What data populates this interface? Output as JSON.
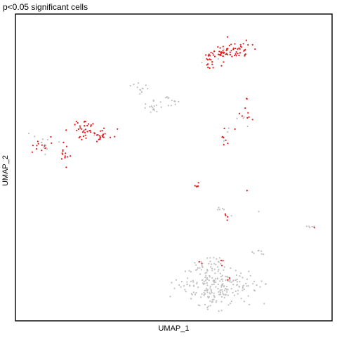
{
  "colors": {
    "significant": "#e41a1c",
    "not_significant": "#c0c0c0",
    "frame": "#000000"
  },
  "chart_data": {
    "type": "scatter",
    "title": "p<0.05 significant cells",
    "xlabel": "UMAP_1",
    "ylabel": "UMAP_2",
    "xlim": [
      0,
      100
    ],
    "ylim": [
      0,
      100
    ],
    "ticks": "none",
    "grid": false,
    "legend": "none",
    "clusters": [
      {
        "cx": 65.6,
        "cy": 87.8,
        "sx": 1.1,
        "sy": 1.5,
        "n": 26,
        "sig": 0.95
      },
      {
        "cx": 61.4,
        "cy": 85.6,
        "sx": 1.1,
        "sy": 1.7,
        "n": 22,
        "sig": 0.95
      },
      {
        "cx": 70.4,
        "cy": 89.2,
        "sx": 2.2,
        "sy": 1.5,
        "n": 40,
        "sig": 0.95
      },
      {
        "cx": 39.1,
        "cy": 76.2,
        "sx": 1.3,
        "sy": 0.8,
        "n": 12,
        "sig": 0.0
      },
      {
        "cx": 48.6,
        "cy": 72.2,
        "sx": 1.3,
        "sy": 1.0,
        "n": 12,
        "sig": 0.0
      },
      {
        "cx": 43.2,
        "cy": 69.7,
        "sx": 1.3,
        "sy": 1.1,
        "n": 14,
        "sig": 0.0
      },
      {
        "cx": 72.6,
        "cy": 66.7,
        "sx": 1.5,
        "sy": 2.4,
        "n": 14,
        "sig": 0.85
      },
      {
        "cx": 66.5,
        "cy": 60.9,
        "sx": 1.3,
        "sy": 1.6,
        "n": 10,
        "sig": 0.7
      },
      {
        "cx": 20.9,
        "cy": 63.0,
        "sx": 2.1,
        "sy": 2.0,
        "n": 32,
        "sig": 0.95
      },
      {
        "cx": 27.1,
        "cy": 60.8,
        "sx": 2.1,
        "sy": 1.0,
        "n": 26,
        "sig": 0.95
      },
      {
        "cx": 7.0,
        "cy": 57.8,
        "sx": 2.0,
        "sy": 1.5,
        "n": 24,
        "sig": 0.45
      },
      {
        "cx": 14.9,
        "cy": 54.6,
        "sx": 1.0,
        "sy": 2.0,
        "n": 14,
        "sig": 0.8
      },
      {
        "cx": 58.1,
        "cy": 43.5,
        "sx": 0.6,
        "sy": 0.7,
        "n": 6,
        "sig": 0.8
      },
      {
        "cx": 73.6,
        "cy": 42.3,
        "sx": 0.2,
        "sy": 0.2,
        "n": 1,
        "sig": 1.0
      },
      {
        "cx": 65.6,
        "cy": 36.0,
        "sx": 0.8,
        "sy": 0.5,
        "n": 5,
        "sig": 0.0
      },
      {
        "cx": 67.2,
        "cy": 33.1,
        "sx": 0.8,
        "sy": 0.4,
        "n": 5,
        "sig": 0.5
      },
      {
        "cx": 77.2,
        "cy": 35.5,
        "sx": 0.2,
        "sy": 0.2,
        "n": 1,
        "sig": 0.0
      },
      {
        "cx": 94.2,
        "cy": 30.4,
        "sx": 0.9,
        "sy": 0.5,
        "n": 7,
        "sig": 0.6
      },
      {
        "cx": 77.6,
        "cy": 21.8,
        "sx": 1.2,
        "sy": 0.5,
        "n": 7,
        "sig": 0.0
      },
      {
        "cx": 65.6,
        "cy": 18.0,
        "sx": 0.4,
        "sy": 0.7,
        "n": 3,
        "sig": 0.8
      },
      {
        "cx": 63.7,
        "cy": 10.8,
        "sx": 5.8,
        "sy": 3.3,
        "n": 230,
        "sig": 0.0
      },
      {
        "cx": 62.9,
        "cy": 18.5,
        "sx": 1.1,
        "sy": 1.1,
        "n": 12,
        "sig": 0.0
      },
      {
        "cx": 58.9,
        "cy": 19.0,
        "sx": 0.4,
        "sy": 0.4,
        "n": 3,
        "sig": 0.9
      },
      {
        "cx": 58.1,
        "cy": 17.0,
        "sx": 0.8,
        "sy": 0.5,
        "n": 6,
        "sig": 0.0
      },
      {
        "cx": 67.4,
        "cy": 12.6,
        "sx": 0.4,
        "sy": 0.4,
        "n": 2,
        "sig": 1.0
      },
      {
        "cx": 40.9,
        "cy": 69.8,
        "sx": 0.2,
        "sy": 0.2,
        "n": 1,
        "sig": 0.0
      }
    ]
  }
}
